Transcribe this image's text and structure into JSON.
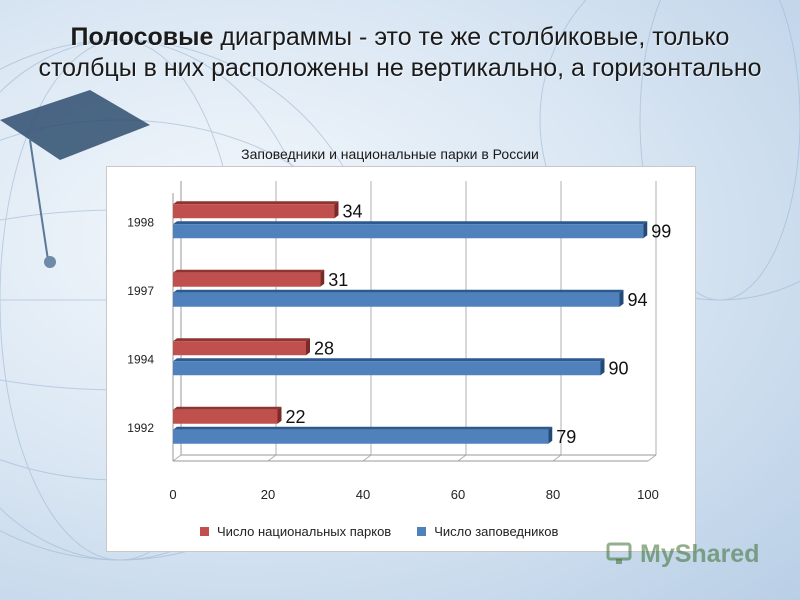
{
  "heading": {
    "bold": "Полосовые",
    "rest": " диаграммы - это те же столбиковые, только столбцы в них расположены не вертикально, а горизонтально"
  },
  "watermark": "MyShared",
  "chart_data": {
    "type": "bar",
    "orientation": "horizontal",
    "title": "Заповедники и национальные парки в России",
    "categories": [
      "1992",
      "1994",
      "1997",
      "1998"
    ],
    "series": [
      {
        "name": "Число национальных парков",
        "color": "#c0504d",
        "values": [
          22,
          28,
          31,
          34
        ]
      },
      {
        "name": "Число заповедников",
        "color": "#4f81bd",
        "values": [
          79,
          90,
          94,
          99
        ]
      }
    ],
    "xlim": [
      0,
      100
    ],
    "xticks": [
      "0",
      "20",
      "40",
      "60",
      "80",
      "100"
    ],
    "grid": true,
    "legend": "bottom"
  }
}
